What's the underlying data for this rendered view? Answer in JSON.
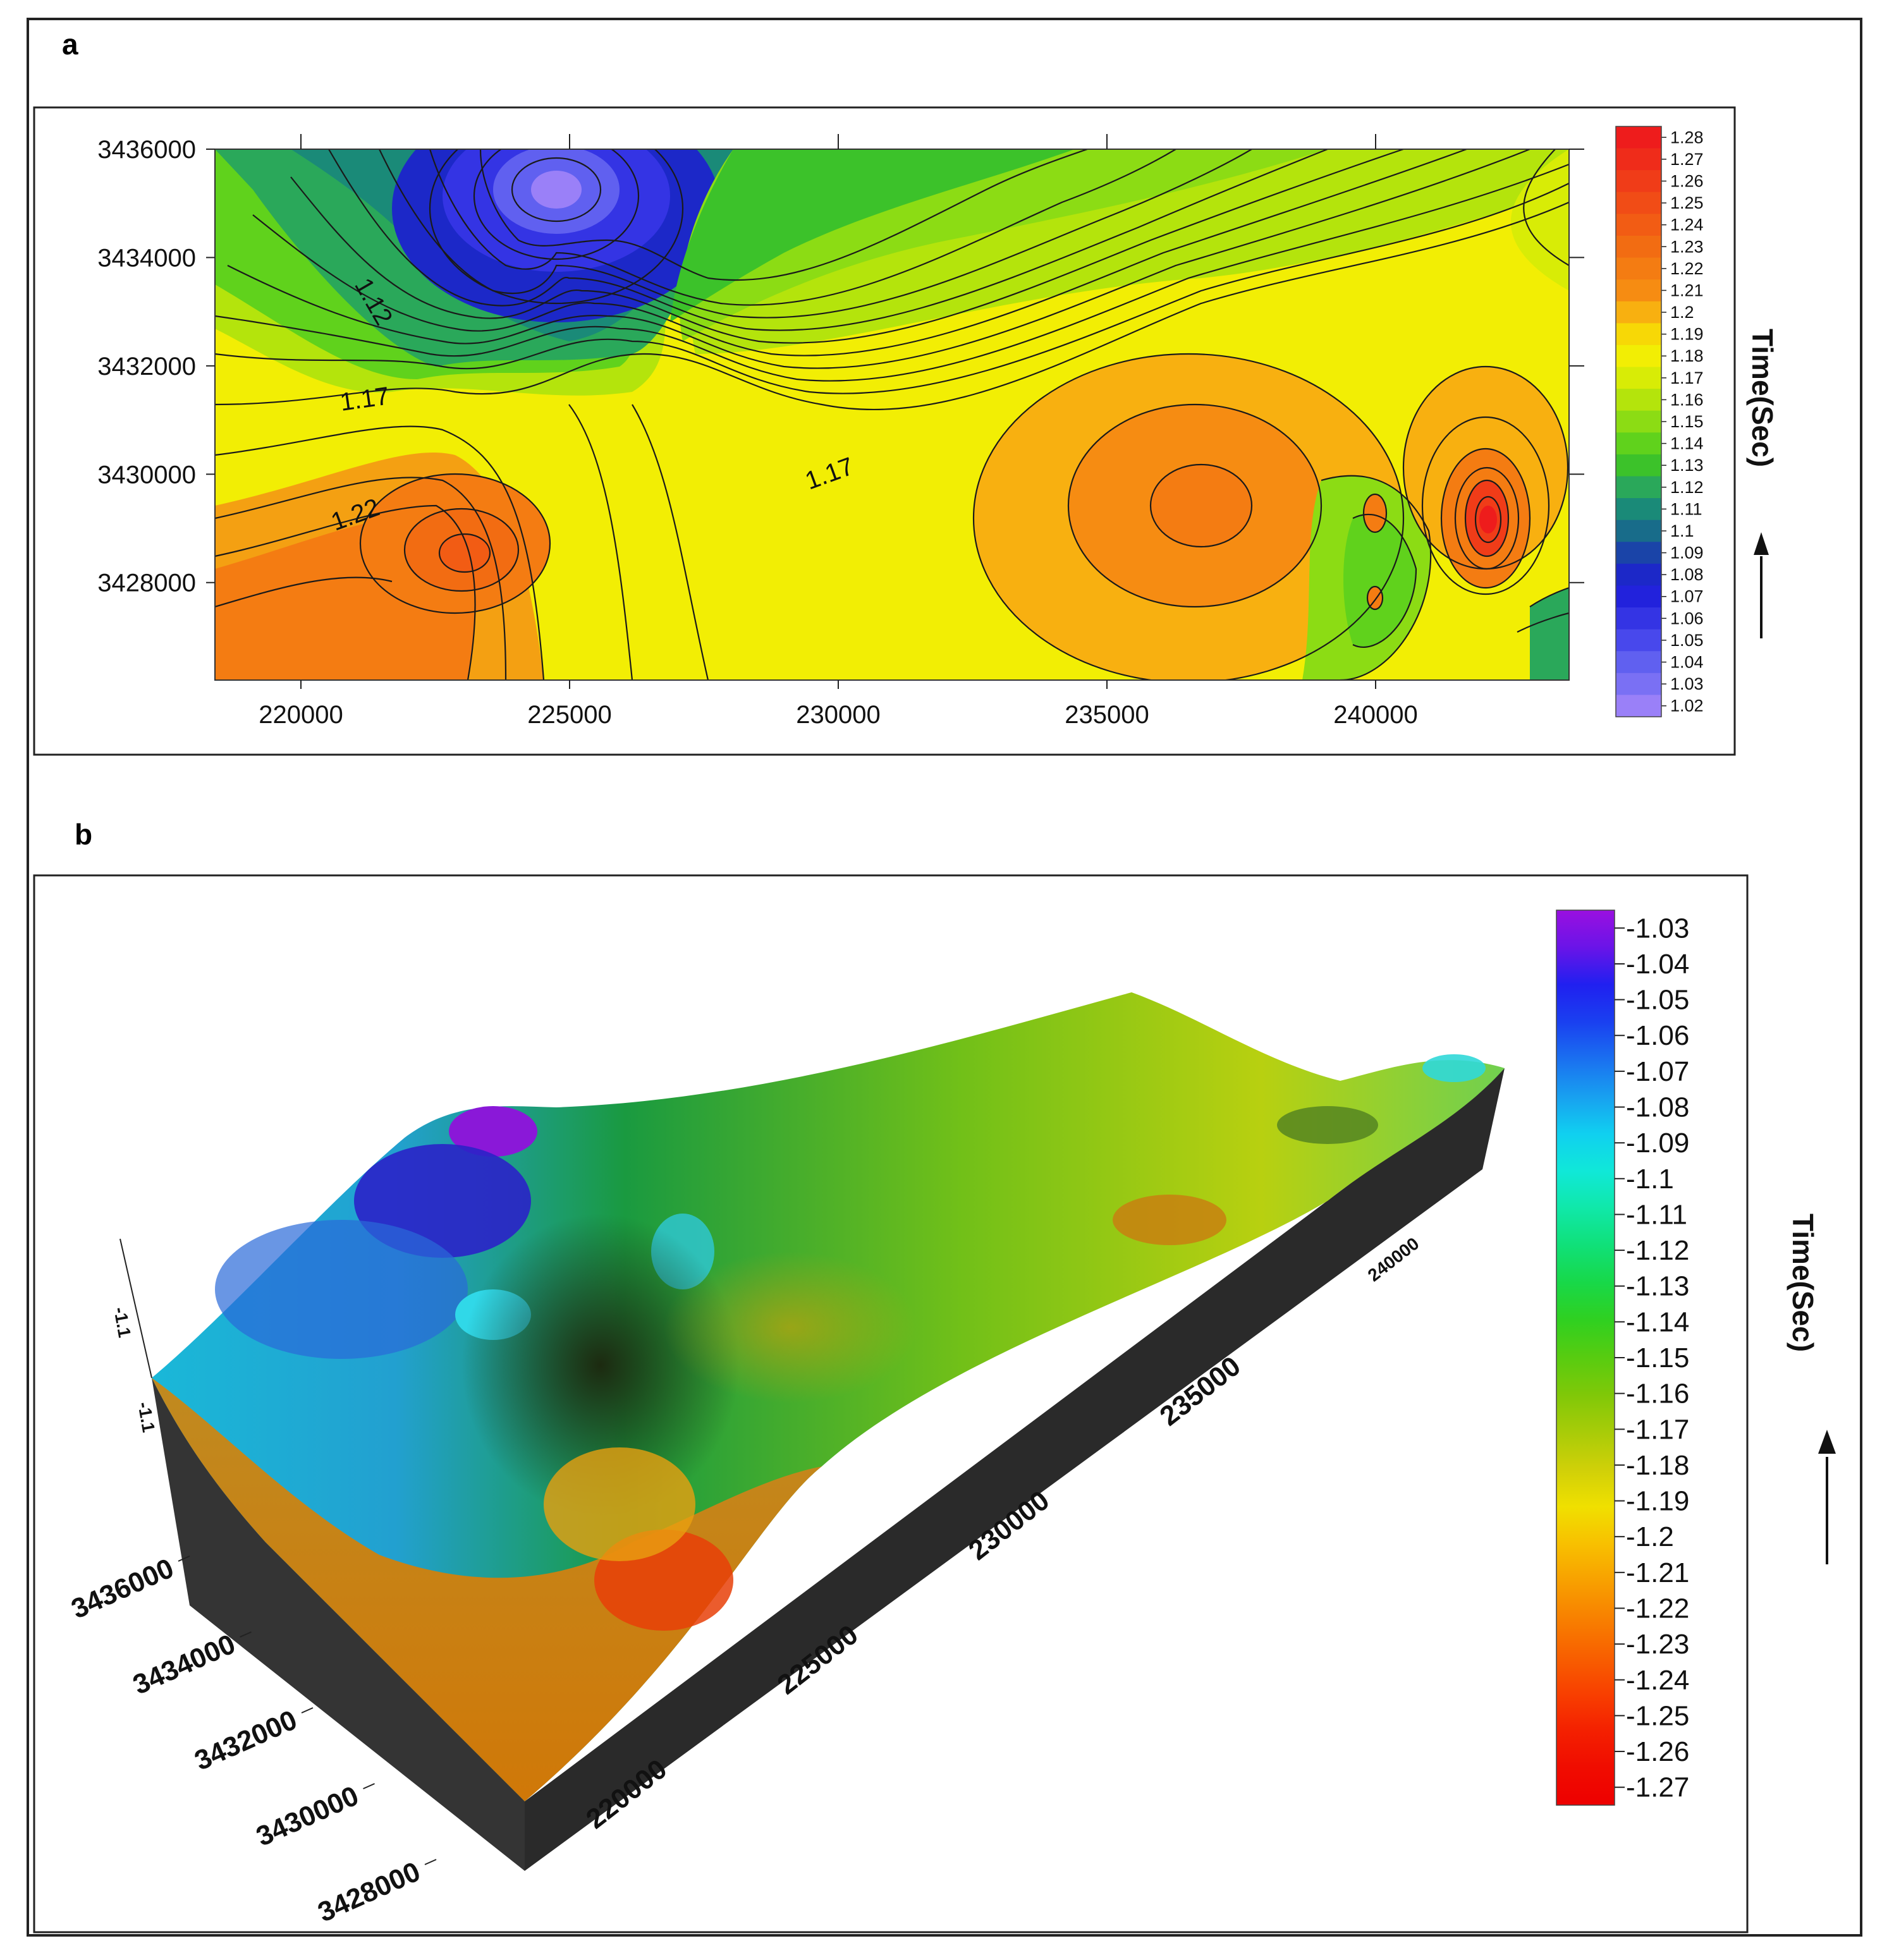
{
  "panels": {
    "a_label": "a",
    "b_label": "b"
  },
  "chart_data": [
    {
      "type": "heatmap",
      "subtype": "contour",
      "panel": "a",
      "x_ticks": [
        "220000",
        "225000",
        "230000",
        "235000",
        "240000"
      ],
      "y_ticks": [
        "3436000",
        "3434000",
        "3432000",
        "3430000",
        "3428000"
      ],
      "xlim": [
        218400,
        243600
      ],
      "ylim": [
        3426200,
        3436000
      ],
      "contour_labels": [
        "1.12",
        "1.17",
        "1.22",
        "1.17"
      ],
      "colorbar": {
        "title": "Time(Sec)",
        "values": [
          "1.28",
          "1.27",
          "1.26",
          "1.25",
          "1.24",
          "1.23",
          "1.22",
          "1.21",
          "1.2",
          "1.19",
          "1.18",
          "1.17",
          "1.16",
          "1.15",
          "1.14",
          "1.13",
          "1.12",
          "1.11",
          "1.1",
          "1.09",
          "1.08",
          "1.07",
          "1.06",
          "1.05",
          "1.04",
          "1.03",
          "1.02"
        ],
        "colors": [
          "#ee1c1c",
          "#ef2c1a",
          "#f03c18",
          "#f14c16",
          "#f25c14",
          "#f26c12",
          "#f47c12",
          "#f68c12",
          "#f8b010",
          "#f7d806",
          "#f2ee04",
          "#d8ec06",
          "#b4e40c",
          "#8cdc14",
          "#60d21c",
          "#3cc22a",
          "#2aa85a",
          "#1a8a78",
          "#186c8a",
          "#1a44a8",
          "#1c28c8",
          "#2222dc",
          "#3434e4",
          "#4848ec",
          "#6060f0",
          "#7a70f4",
          "#9a80f8"
        ]
      },
      "extrema": [
        {
          "kind": "minimum",
          "x": 224800,
          "y": 3435300,
          "value": 1.02
        },
        {
          "kind": "maximum",
          "x": 223000,
          "y": 3428600,
          "value": 1.23
        },
        {
          "kind": "maximum",
          "x": 236800,
          "y": 3429300,
          "value": 1.21
        },
        {
          "kind": "maximum",
          "x": 242300,
          "y": 3429000,
          "value": 1.28
        }
      ]
    },
    {
      "type": "heatmap",
      "subtype": "3d-surface",
      "panel": "b",
      "x_ticks": [
        "220000",
        "225000",
        "230000",
        "235000",
        "240000"
      ],
      "y_ticks": [
        "3436000",
        "3434000",
        "3432000",
        "3430000",
        "3428000"
      ],
      "z_ticks": [
        "-1.1",
        "-1.1"
      ],
      "colorbar": {
        "title": "Time(Sec)",
        "values": [
          "-1.03",
          "-1.04",
          "-1.05",
          "-1.06",
          "-1.07",
          "-1.08",
          "-1.09",
          "-1.1",
          "-1.11",
          "-1.12",
          "-1.13",
          "-1.14",
          "-1.15",
          "-1.16",
          "-1.17",
          "-1.18",
          "-1.19",
          "-1.2",
          "-1.21",
          "-1.22",
          "-1.23",
          "-1.24",
          "-1.25",
          "-1.26",
          "-1.27"
        ],
        "colors": [
          "#9a10e0",
          "#6a14e8",
          "#2020f0",
          "#1a40f0",
          "#1a70f0",
          "#18a0f0",
          "#10d0f0",
          "#10e8d8",
          "#10e8a8",
          "#10e078",
          "#18d848",
          "#30d020",
          "#58cc10",
          "#80c808",
          "#a8cc08",
          "#d0d008",
          "#f0e000",
          "#f8c000",
          "#f8a000",
          "#f88000",
          "#f86000",
          "#f84000",
          "#f42000",
          "#f00c00",
          "#ee0000"
        ]
      }
    }
  ]
}
